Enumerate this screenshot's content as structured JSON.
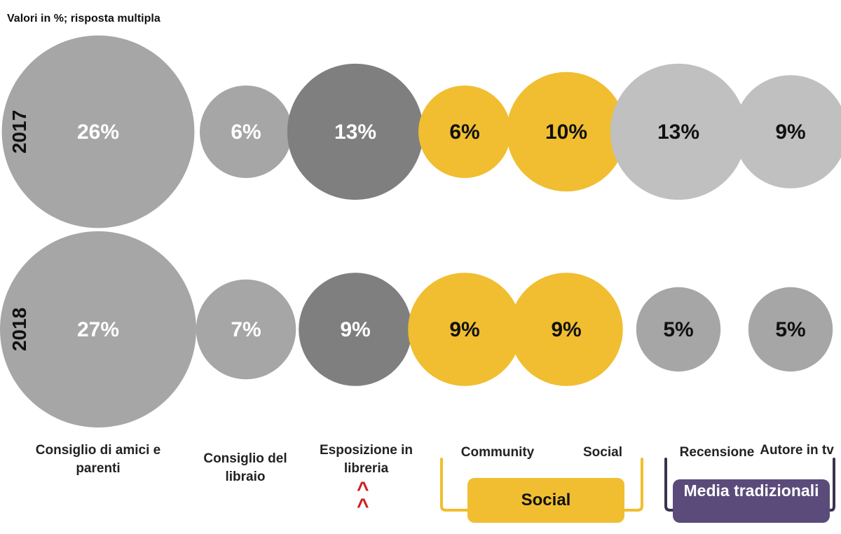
{
  "note": "Valori in %; risposta multipla",
  "colors": {
    "gray_mid": "#a6a6a6",
    "gray_dark": "#7f7f7f",
    "gray_light": "#c0c0c0",
    "yellow": "#f0be30",
    "purple": "#5b4b7a",
    "purple_dark": "#3a3250",
    "caret": "#cc1f1f"
  },
  "chart_data": {
    "type": "bubble",
    "title": "",
    "rows": [
      "2017",
      "2018"
    ],
    "categories": [
      "Consiglio di amici e parenti",
      "Consiglio del libraio",
      "Esposizione in libreria",
      "Community",
      "Social",
      "Recensione",
      "Autore in tv"
    ],
    "series": [
      {
        "name": "2017",
        "values": [
          26,
          6,
          13,
          6,
          10,
          13,
          9
        ],
        "labels": [
          "26%",
          "6%",
          "13%",
          "6%",
          "10%",
          "13%",
          "9%"
        ]
      },
      {
        "name": "2018",
        "values": [
          27,
          7,
          9,
          9,
          9,
          5,
          5
        ],
        "labels": [
          "27%",
          "7%",
          "9%",
          "9%",
          "9%",
          "5%",
          "5%"
        ]
      }
    ],
    "groups": [
      {
        "label": "Social",
        "members": [
          "Community",
          "Social"
        ]
      },
      {
        "label": "Media tradizionali",
        "members": [
          "Recensione",
          "Autore in tv"
        ]
      }
    ],
    "annotation": "^^"
  },
  "labels": {
    "consiglio_amici": "Consiglio di amici e parenti",
    "consiglio_libraio": "Consiglio del libraio",
    "esposizione": "Esposizione in libreria",
    "community": "Community",
    "social": "Social",
    "recensione": "Recensione",
    "autore_tv": "Autore in tv",
    "group_social": "Social",
    "group_media": "Media tradizionali"
  }
}
